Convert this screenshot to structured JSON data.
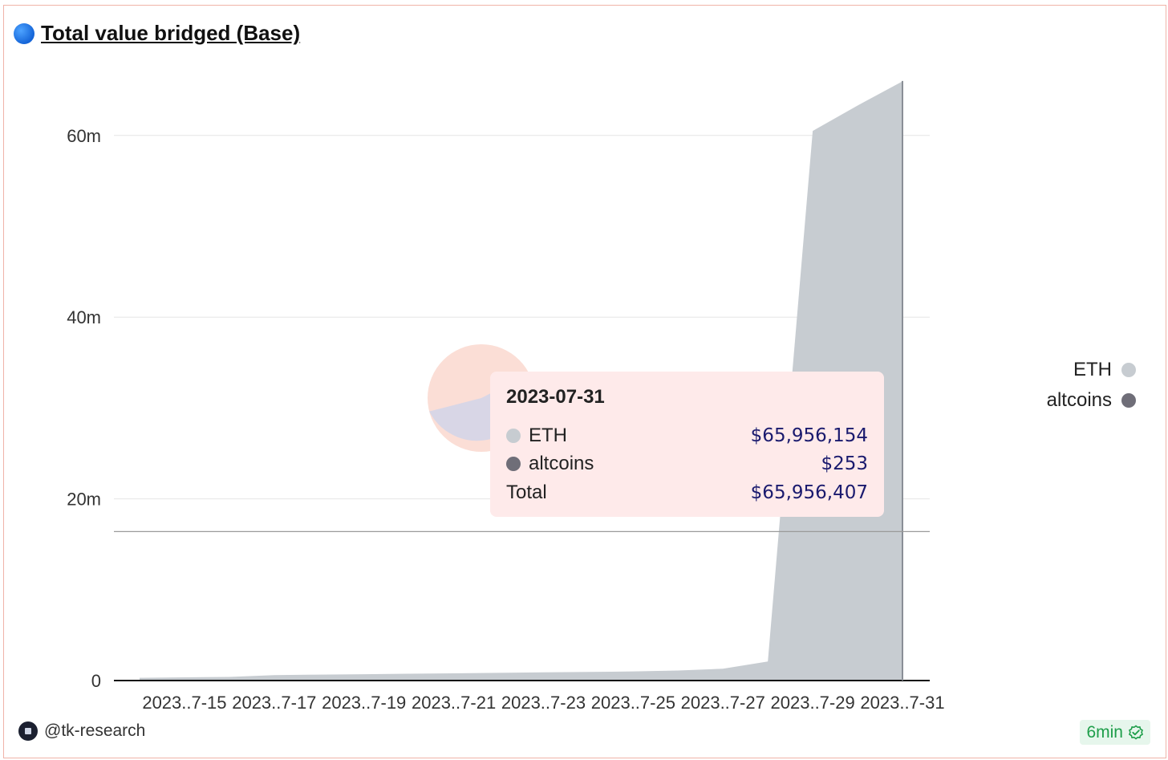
{
  "title": "Total value bridged (Base)",
  "title_icon": "blue-circle-icon",
  "chart_data": {
    "type": "area",
    "stacked": true,
    "x": [
      "2023-07-14",
      "2023-07-15",
      "2023-07-16",
      "2023-07-17",
      "2023-07-18",
      "2023-07-19",
      "2023-07-20",
      "2023-07-21",
      "2023-07-22",
      "2023-07-23",
      "2023-07-24",
      "2023-07-25",
      "2023-07-26",
      "2023-07-27",
      "2023-07-28",
      "2023-07-29",
      "2023-07-30",
      "2023-07-31"
    ],
    "tick_labels": [
      "2023..7-15",
      "2023..7-17",
      "2023..7-19",
      "2023..7-21",
      "2023..7-23",
      "2023..7-25",
      "2023..7-27",
      "2023..7-29",
      "2023..7-31"
    ],
    "series": [
      {
        "name": "ETH",
        "color": "#c7ccd1",
        "values": [
          0.3,
          0.35,
          0.4,
          0.6,
          0.65,
          0.7,
          0.75,
          0.8,
          0.85,
          0.9,
          0.95,
          1.0,
          1.1,
          1.3,
          2.1,
          60.5,
          63.3,
          65.956154
        ]
      },
      {
        "name": "altcoins",
        "color": "#6f6e78",
        "values": [
          0.0,
          0.0,
          0.0,
          0.0,
          0.0,
          0.0,
          0.0,
          0.0,
          0.0,
          0.0,
          0.0,
          0.0,
          0.0,
          0.0,
          0.0,
          0.0,
          0.0,
          0.000253
        ]
      }
    ],
    "y_ticks": [
      "0",
      "20m",
      "40m",
      "60m"
    ],
    "y_tick_values": [
      0,
      20,
      40,
      60
    ],
    "ylim": [
      0,
      66
    ],
    "grid": true,
    "legend_position": "right",
    "crosshair_y": 16.4
  },
  "legend": {
    "items": [
      {
        "label": "ETH",
        "color": "#c7ccd1"
      },
      {
        "label": "altcoins",
        "color": "#6f6e78"
      }
    ]
  },
  "tooltip": {
    "date": "2023-07-31",
    "rows": [
      {
        "label": "ETH",
        "value": "$65,956,154",
        "color": "#c7ccd1"
      },
      {
        "label": "altcoins",
        "value": "$253",
        "color": "#6f6e78"
      }
    ],
    "total_label": "Total",
    "total_value": "$65,956,407"
  },
  "watermark": {
    "pie_colors": [
      "#fbded6",
      "#d8d6e6"
    ]
  },
  "footer": {
    "author": "@tk-research",
    "avatar_icon": "tk-research-avatar-icon",
    "refresh_label": "6min",
    "refresh_icon": "check-badge-icon"
  }
}
